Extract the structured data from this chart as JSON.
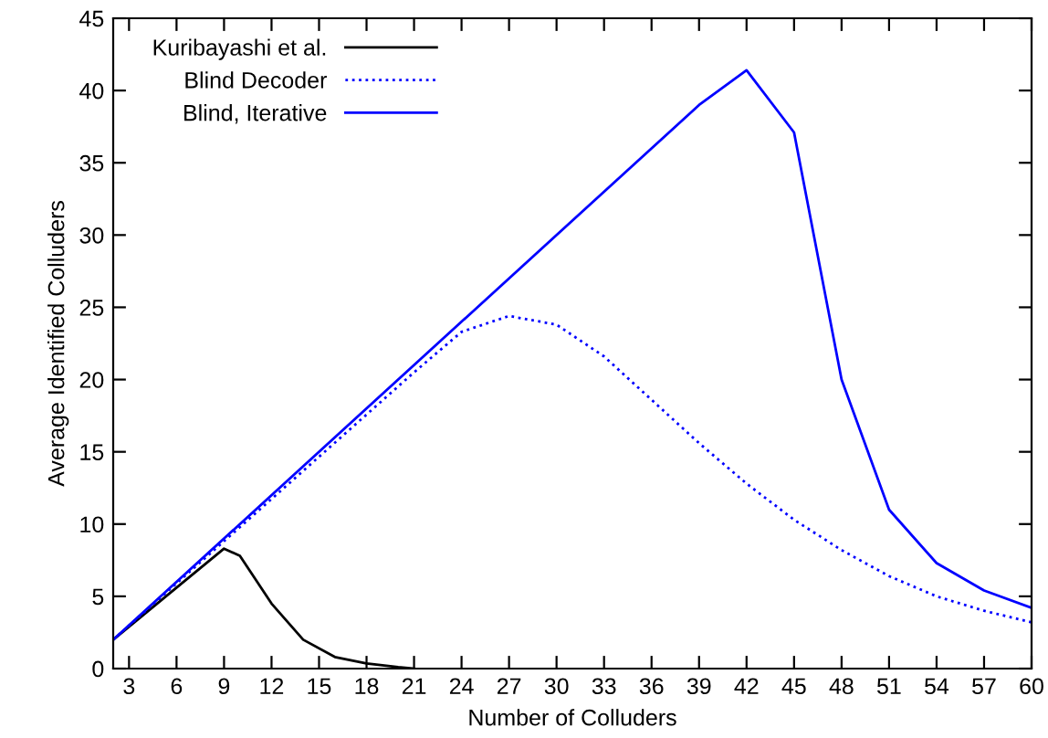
{
  "chart_data": {
    "type": "line",
    "xlabel": "Number of Colluders",
    "ylabel": "Average Identified Colluders",
    "xlim": [
      2,
      60
    ],
    "ylim": [
      0,
      45
    ],
    "xticks": [
      3,
      6,
      9,
      12,
      15,
      18,
      21,
      24,
      27,
      30,
      33,
      36,
      39,
      42,
      45,
      48,
      51,
      54,
      57,
      60
    ],
    "yticks": [
      0,
      5,
      10,
      15,
      20,
      25,
      30,
      35,
      40,
      45
    ],
    "grid": false,
    "legend": "top left",
    "series": [
      {
        "name": "Kuribayashi et al.",
        "color": "#000000",
        "line_style": "solid",
        "x": [
          2,
          9,
          10,
          12,
          14,
          16,
          18,
          20,
          21
        ],
        "values": [
          2,
          8.3,
          7.8,
          4.5,
          2,
          0.8,
          0.35,
          0.1,
          0
        ]
      },
      {
        "name": "Blind Decoder",
        "color": "#0000ff",
        "line_style": "dotted",
        "x": [
          2,
          21,
          24,
          27,
          30,
          33,
          36,
          39,
          42,
          45,
          48,
          51,
          54,
          57,
          60
        ],
        "values": [
          2,
          20.5,
          23.3,
          24.4,
          23.8,
          21.6,
          18.6,
          15.6,
          12.8,
          10.3,
          8.2,
          6.4,
          5,
          4,
          3.2
        ]
      },
      {
        "name": "Blind, Iterative",
        "color": "#0000ff",
        "line_style": "solid",
        "x": [
          2,
          39,
          42,
          45,
          48,
          51,
          54,
          57,
          60
        ],
        "values": [
          2,
          39,
          41.4,
          37.1,
          20,
          11,
          7.3,
          5.4,
          4.2
        ]
      }
    ]
  }
}
